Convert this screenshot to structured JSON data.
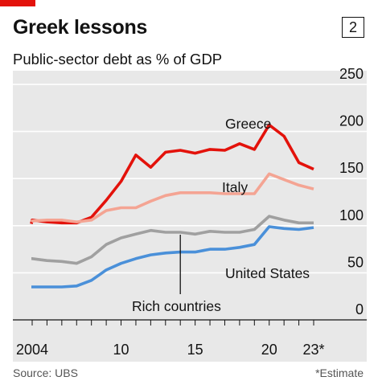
{
  "header": {
    "title": "Greek lessons",
    "badge": "2",
    "subtitle": "Public-sector debt as % of GDP"
  },
  "footer": {
    "source": "Source: UBS",
    "note": "*Estimate"
  },
  "colors": {
    "greece": "#e3120b",
    "italy": "#f4a493",
    "rich": "#a0a0a0",
    "us": "#4a90d9",
    "accent": "#e3120b",
    "plot_bg": "#e8e8e8"
  },
  "chart_data": {
    "type": "line",
    "title": "Greek lessons",
    "subtitle": "Public-sector debt as % of GDP",
    "ylim": [
      0,
      250
    ],
    "xlim": [
      2003.8,
      2024.4
    ],
    "yticks": [
      {
        "value": 0,
        "label": "0"
      },
      {
        "value": 50,
        "label": "50"
      },
      {
        "value": 100,
        "label": "100"
      },
      {
        "value": 150,
        "label": "150"
      },
      {
        "value": 200,
        "label": "200"
      },
      {
        "value": 250,
        "label": "250"
      }
    ],
    "xticks": [
      {
        "value": 2004,
        "label": "2004"
      },
      {
        "value": 2010,
        "label": "10"
      },
      {
        "value": 2015,
        "label": "15"
      },
      {
        "value": 2020,
        "label": "20"
      },
      {
        "value": 2023,
        "label": "23*"
      }
    ],
    "x": [
      2003,
      2004,
      2005,
      2006,
      2007,
      2008,
      2009,
      2010,
      2011,
      2012,
      2013,
      2014,
      2015,
      2016,
      2017,
      2018,
      2019,
      2020,
      2021,
      2022,
      2023
    ],
    "series": [
      {
        "name": "Greece",
        "colorKey": "greece",
        "values": [
          102,
          106,
          104,
          103,
          103,
          109,
          127,
          147,
          175,
          162,
          178,
          180,
          177,
          181,
          180,
          187,
          181,
          207,
          195,
          167,
          160
        ]
      },
      {
        "name": "Italy",
        "colorKey": "italy",
        "values": [
          104,
          105,
          106,
          106,
          104,
          106,
          116,
          119,
          119,
          126,
          132,
          135,
          135,
          135,
          134,
          134,
          134,
          155,
          149,
          143,
          139
        ]
      },
      {
        "name": "Rich countries",
        "colorKey": "rich",
        "values": [
          65,
          65,
          63,
          62,
          60,
          67,
          80,
          87,
          91,
          95,
          93,
          93,
          91,
          94,
          93,
          93,
          96,
          110,
          106,
          103,
          103
        ]
      },
      {
        "name": "United States",
        "colorKey": "us",
        "values": [
          35,
          35,
          35,
          35,
          36,
          42,
          53,
          60,
          65,
          69,
          71,
          72,
          72,
          75,
          75,
          77,
          80,
          99,
          97,
          96,
          98
        ]
      }
    ],
    "annotations": [
      {
        "text": "Greece"
      },
      {
        "text": "Italy"
      },
      {
        "text": "United States"
      },
      {
        "text": "Rich countries"
      }
    ],
    "grid": true
  }
}
